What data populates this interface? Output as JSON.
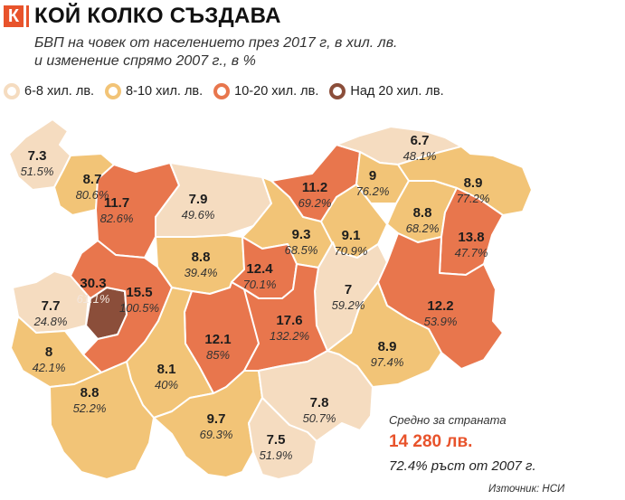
{
  "header": {
    "logo_letter": "К",
    "headline": "КОЙ КОЛКО СЪЗДАВА",
    "subtitle_line1": "БВП на човек от населението през 2017 г, в хил. лв.",
    "subtitle_line2": "и изменение спрямо 2007 г., в %"
  },
  "legend": [
    {
      "label": "6-8 хил. лв.",
      "color": "#f5dcc0"
    },
    {
      "label": "8-10 хил. лв.",
      "color": "#f2c477"
    },
    {
      "label": "10-20 хил. лв.",
      "color": "#e8764d"
    },
    {
      "label": "Над 20 хил. лв.",
      "color": "#8b4e3a"
    }
  ],
  "regions": [
    {
      "gdp": "7.3",
      "change": "51.5%",
      "tier": 0
    },
    {
      "gdp": "8.7",
      "change": "80.6%",
      "tier": 1
    },
    {
      "gdp": "11.7",
      "change": "82.6%",
      "tier": 2
    },
    {
      "gdp": "7.9",
      "change": "49.6%",
      "tier": 0
    },
    {
      "gdp": "11.2",
      "change": "69.2%",
      "tier": 2
    },
    {
      "gdp": "6.7",
      "change": "48.1%",
      "tier": 0
    },
    {
      "gdp": "9",
      "change": "76.2%",
      "tier": 1
    },
    {
      "gdp": "8.9",
      "change": "77.2%",
      "tier": 1
    },
    {
      "gdp": "9.3",
      "change": "68.5%",
      "tier": 1
    },
    {
      "gdp": "9.1",
      "change": "70.9%",
      "tier": 1
    },
    {
      "gdp": "8.8",
      "change": "68.2%",
      "tier": 1
    },
    {
      "gdp": "13.8",
      "change": "47.7%",
      "tier": 2
    },
    {
      "gdp": "8.8",
      "change": "39.4%",
      "tier": 1
    },
    {
      "gdp": "12.4",
      "change": "70.1%",
      "tier": 2
    },
    {
      "gdp": "7",
      "change": "59.2%",
      "tier": 0
    },
    {
      "gdp": "12.2",
      "change": "53.9%",
      "tier": 2
    },
    {
      "gdp": "30.3",
      "change": "61.1%",
      "tier": 3
    },
    {
      "gdp": "7.7",
      "change": "24.8%",
      "tier": 0
    },
    {
      "gdp": "15.5",
      "change": "100.5%",
      "tier": 2
    },
    {
      "gdp": "12.1",
      "change": "85%",
      "tier": 2
    },
    {
      "gdp": "17.6",
      "change": "132.2%",
      "tier": 2
    },
    {
      "gdp": "8",
      "change": "42.1%",
      "tier": 1
    },
    {
      "gdp": "8.1",
      "change": "40%",
      "tier": 1
    },
    {
      "gdp": "8.9",
      "change": "97.4%",
      "tier": 1
    },
    {
      "gdp": "8.8",
      "change": "52.2%",
      "tier": 1
    },
    {
      "gdp": "9.7",
      "change": "69.3%",
      "tier": 1
    },
    {
      "gdp": "7.8",
      "change": "50.7%",
      "tier": 0
    },
    {
      "gdp": "7.5",
      "change": "51.9%",
      "tier": 0
    }
  ],
  "summary": {
    "label": "Средно за страната",
    "value": "14 280 лв.",
    "growth": "72.4% ръст от 2007 г."
  },
  "source": "Източник: НСИ"
}
